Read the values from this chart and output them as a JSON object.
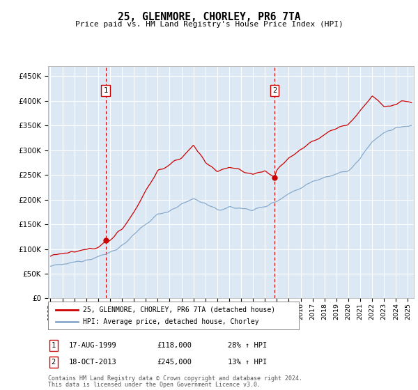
{
  "title": "25, GLENMORE, CHORLEY, PR6 7TA",
  "subtitle": "Price paid vs. HM Land Registry's House Price Index (HPI)",
  "yticks": [
    0,
    50000,
    100000,
    150000,
    200000,
    250000,
    300000,
    350000,
    400000,
    450000
  ],
  "ytick_labels": [
    "£0",
    "£50K",
    "£100K",
    "£150K",
    "£200K",
    "£250K",
    "£300K",
    "£350K",
    "£400K",
    "£450K"
  ],
  "ylim": [
    0,
    470000
  ],
  "xlim_start": 1994.8,
  "xlim_end": 2025.5,
  "bg_color": "#dce9f5",
  "grid_color": "#ffffff",
  "red_line_color": "#cc0000",
  "blue_line_color": "#88aacc",
  "sale1_x": 1999.625,
  "sale1_y": 118000,
  "sale1_label": "1",
  "sale1_date": "17-AUG-1999",
  "sale1_price": "£118,000",
  "sale1_hpi": "28% ↑ HPI",
  "sale2_x": 2013.8,
  "sale2_y": 245000,
  "sale2_label": "2",
  "sale2_date": "18-OCT-2013",
  "sale2_price": "£245,000",
  "sale2_hpi": "13% ↑ HPI",
  "legend_line1": "25, GLENMORE, CHORLEY, PR6 7TA (detached house)",
  "legend_line2": "HPI: Average price, detached house, Chorley",
  "footer1": "Contains HM Land Registry data © Crown copyright and database right 2024.",
  "footer2": "This data is licensed under the Open Government Licence v3.0.",
  "xticks": [
    1995,
    1996,
    1997,
    1998,
    1999,
    2000,
    2001,
    2002,
    2003,
    2004,
    2005,
    2006,
    2007,
    2008,
    2009,
    2010,
    2011,
    2012,
    2013,
    2014,
    2015,
    2016,
    2017,
    2018,
    2019,
    2020,
    2021,
    2022,
    2023,
    2024,
    2025
  ],
  "hpi_anchors": [
    [
      1995.0,
      65000
    ],
    [
      1996.0,
      68000
    ],
    [
      1997.0,
      73000
    ],
    [
      1998.0,
      79000
    ],
    [
      1999.0,
      84000
    ],
    [
      2000.0,
      93000
    ],
    [
      2001.0,
      107000
    ],
    [
      2002.0,
      128000
    ],
    [
      2003.0,
      150000
    ],
    [
      2004.0,
      170000
    ],
    [
      2005.0,
      178000
    ],
    [
      2006.0,
      190000
    ],
    [
      2007.0,
      202000
    ],
    [
      2008.0,
      192000
    ],
    [
      2009.0,
      178000
    ],
    [
      2010.0,
      185000
    ],
    [
      2011.0,
      182000
    ],
    [
      2012.0,
      180000
    ],
    [
      2013.0,
      185000
    ],
    [
      2014.0,
      198000
    ],
    [
      2015.0,
      212000
    ],
    [
      2016.0,
      224000
    ],
    [
      2017.0,
      237000
    ],
    [
      2018.0,
      246000
    ],
    [
      2019.0,
      252000
    ],
    [
      2020.0,
      258000
    ],
    [
      2021.0,
      282000
    ],
    [
      2022.0,
      318000
    ],
    [
      2023.0,
      335000
    ],
    [
      2024.0,
      345000
    ],
    [
      2025.3,
      350000
    ]
  ],
  "pp_anchors": [
    [
      1995.0,
      88000
    ],
    [
      1996.0,
      90000
    ],
    [
      1997.0,
      93000
    ],
    [
      1998.0,
      98000
    ],
    [
      1999.0,
      105000
    ],
    [
      2000.0,
      118000
    ],
    [
      2001.0,
      140000
    ],
    [
      2002.0,
      175000
    ],
    [
      2003.0,
      218000
    ],
    [
      2004.0,
      258000
    ],
    [
      2005.0,
      270000
    ],
    [
      2006.0,
      285000
    ],
    [
      2007.0,
      310000
    ],
    [
      2007.5,
      295000
    ],
    [
      2008.0,
      275000
    ],
    [
      2009.0,
      258000
    ],
    [
      2010.0,
      265000
    ],
    [
      2011.0,
      258000
    ],
    [
      2012.0,
      252000
    ],
    [
      2013.0,
      258000
    ],
    [
      2013.8,
      245000
    ],
    [
      2014.0,
      260000
    ],
    [
      2015.0,
      285000
    ],
    [
      2016.0,
      300000
    ],
    [
      2017.0,
      318000
    ],
    [
      2018.0,
      332000
    ],
    [
      2019.0,
      345000
    ],
    [
      2020.0,
      352000
    ],
    [
      2021.0,
      380000
    ],
    [
      2022.0,
      410000
    ],
    [
      2022.5,
      400000
    ],
    [
      2023.0,
      388000
    ],
    [
      2024.0,
      392000
    ],
    [
      2024.5,
      400000
    ],
    [
      2025.3,
      398000
    ]
  ]
}
